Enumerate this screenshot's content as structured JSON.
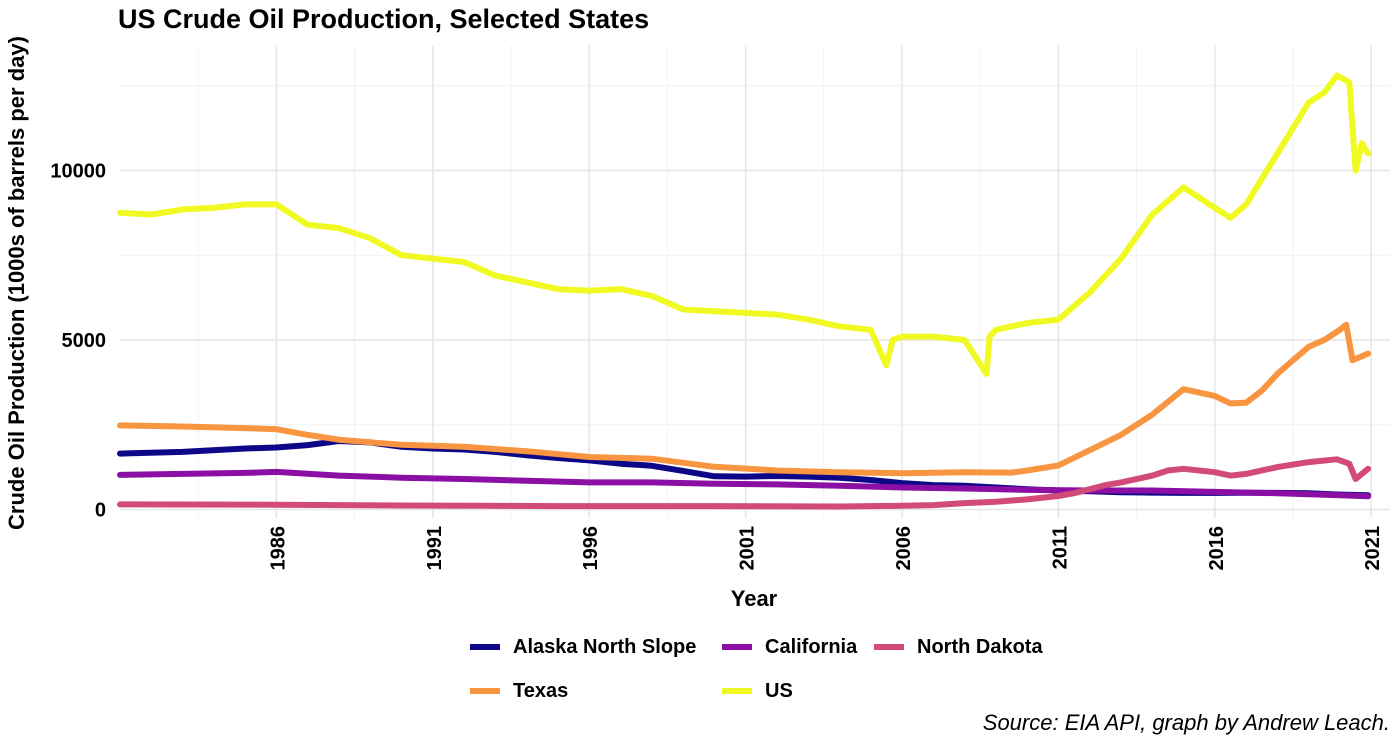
{
  "chart_data": {
    "type": "line",
    "title": "US Crude Oil Production, Selected States",
    "xlabel": "Year",
    "ylabel": "Crude Oil Production (1000s of barrels per day)",
    "caption": "Source: EIA API, graph by Andrew Leach.",
    "xlim": [
      1981,
      2021.6
    ],
    "ylim": [
      -250,
      13700
    ],
    "x_ticks": [
      1986,
      1991,
      1996,
      2001,
      2006,
      2011,
      2016,
      2021
    ],
    "y_ticks": [
      0,
      5000,
      10000
    ],
    "grid": true,
    "legend_position": "bottom",
    "series": [
      {
        "name": "Alaska North Slope",
        "color": "#0d0887",
        "x": [
          1981,
          1983,
          1985,
          1986,
          1987,
          1988,
          1989,
          1990,
          1991,
          1992,
          1993,
          1994,
          1995,
          1996,
          1997,
          1998,
          1999,
          2000,
          2001,
          2002,
          2003,
          2004,
          2005,
          2006,
          2007,
          2008,
          2009,
          2010,
          2011,
          2012,
          2013,
          2014,
          2015,
          2016,
          2017,
          2018,
          2019,
          2020,
          2020.9
        ],
        "values": [
          1650,
          1700,
          1800,
          1830,
          1900,
          2020,
          1980,
          1850,
          1800,
          1770,
          1700,
          1600,
          1520,
          1450,
          1350,
          1290,
          1140,
          980,
          970,
          990,
          970,
          940,
          870,
          780,
          720,
          700,
          650,
          600,
          560,
          540,
          510,
          500,
          490,
          490,
          495,
          490,
          480,
          440,
          420
        ]
      },
      {
        "name": "California",
        "color": "#8b0fa5",
        "x": [
          1981,
          1983,
          1985,
          1986,
          1988,
          1990,
          1992,
          1994,
          1996,
          1998,
          2000,
          2002,
          2004,
          2006,
          2008,
          2010,
          2012,
          2014,
          2016,
          2018,
          2020,
          2020.9
        ],
        "values": [
          1020,
          1050,
          1080,
          1110,
          1000,
          940,
          900,
          850,
          800,
          800,
          760,
          740,
          700,
          650,
          620,
          580,
          560,
          560,
          520,
          480,
          420,
          390
        ]
      },
      {
        "name": "North Dakota",
        "color": "#d24a7a",
        "x": [
          1981,
          1985,
          1990,
          1995,
          2000,
          2004,
          2006,
          2007,
          2008,
          2009,
          2010,
          2011,
          2011.5,
          2012,
          2012.5,
          2013,
          2014,
          2014.5,
          2015,
          2016,
          2016.5,
          2017,
          2018,
          2019,
          2019.9,
          2020.3,
          2020.5,
          2020.9
        ],
        "values": [
          150,
          145,
          120,
          100,
          100,
          90,
          110,
          130,
          190,
          230,
          300,
          400,
          480,
          600,
          720,
          800,
          1000,
          1150,
          1200,
          1100,
          1000,
          1050,
          1250,
          1400,
          1480,
          1350,
          900,
          1200
        ]
      },
      {
        "name": "Texas",
        "color": "#f89540",
        "x": [
          1981,
          1983,
          1985,
          1986,
          1987,
          1988,
          1990,
          1992,
          1994,
          1996,
          1998,
          2000,
          2002,
          2004,
          2006,
          2008,
          2009.5,
          2010,
          2011,
          2012,
          2013,
          2014,
          2015,
          2016,
          2016.5,
          2017,
          2017.5,
          2018,
          2018.5,
          2019,
          2019.5,
          2020,
          2020.2,
          2020.4,
          2020.9
        ],
        "values": [
          2480,
          2450,
          2400,
          2370,
          2200,
          2060,
          1910,
          1850,
          1720,
          1550,
          1500,
          1260,
          1150,
          1100,
          1070,
          1100,
          1090,
          1150,
          1300,
          1750,
          2200,
          2800,
          3550,
          3350,
          3130,
          3150,
          3500,
          4000,
          4400,
          4800,
          5000,
          5300,
          5450,
          4400,
          4600
        ]
      },
      {
        "name": "US",
        "color": "#f0f921",
        "x": [
          1981,
          1982,
          1983,
          1984,
          1985,
          1986,
          1987,
          1988,
          1989,
          1990,
          1991,
          1992,
          1993,
          1994,
          1995,
          1996,
          1997,
          1998,
          1999,
          2000,
          2001,
          2002,
          2003,
          2004,
          2005,
          2005.5,
          2005.7,
          2006,
          2007,
          2008,
          2008.7,
          2008.8,
          2009,
          2010,
          2011,
          2012,
          2013,
          2014,
          2015,
          2016,
          2016.5,
          2017,
          2018,
          2019,
          2019.5,
          2019.9,
          2020.3,
          2020.5,
          2020.7,
          2020.9
        ],
        "values": [
          8750,
          8700,
          8850,
          8900,
          9000,
          9000,
          8400,
          8300,
          8000,
          7500,
          7400,
          7300,
          6900,
          6700,
          6500,
          6450,
          6500,
          6300,
          5900,
          5850,
          5800,
          5750,
          5600,
          5400,
          5300,
          4250,
          5000,
          5100,
          5100,
          5000,
          4000,
          5100,
          5300,
          5500,
          5600,
          6400,
          7400,
          8700,
          9500,
          8900,
          8600,
          9000,
          10500,
          12000,
          12300,
          12800,
          12600,
          10000,
          10800,
          10500
        ]
      }
    ]
  },
  "legend": {
    "rows": [
      [
        "Alaska North Slope",
        "California",
        "North Dakota"
      ],
      [
        "Texas",
        "US"
      ]
    ]
  }
}
